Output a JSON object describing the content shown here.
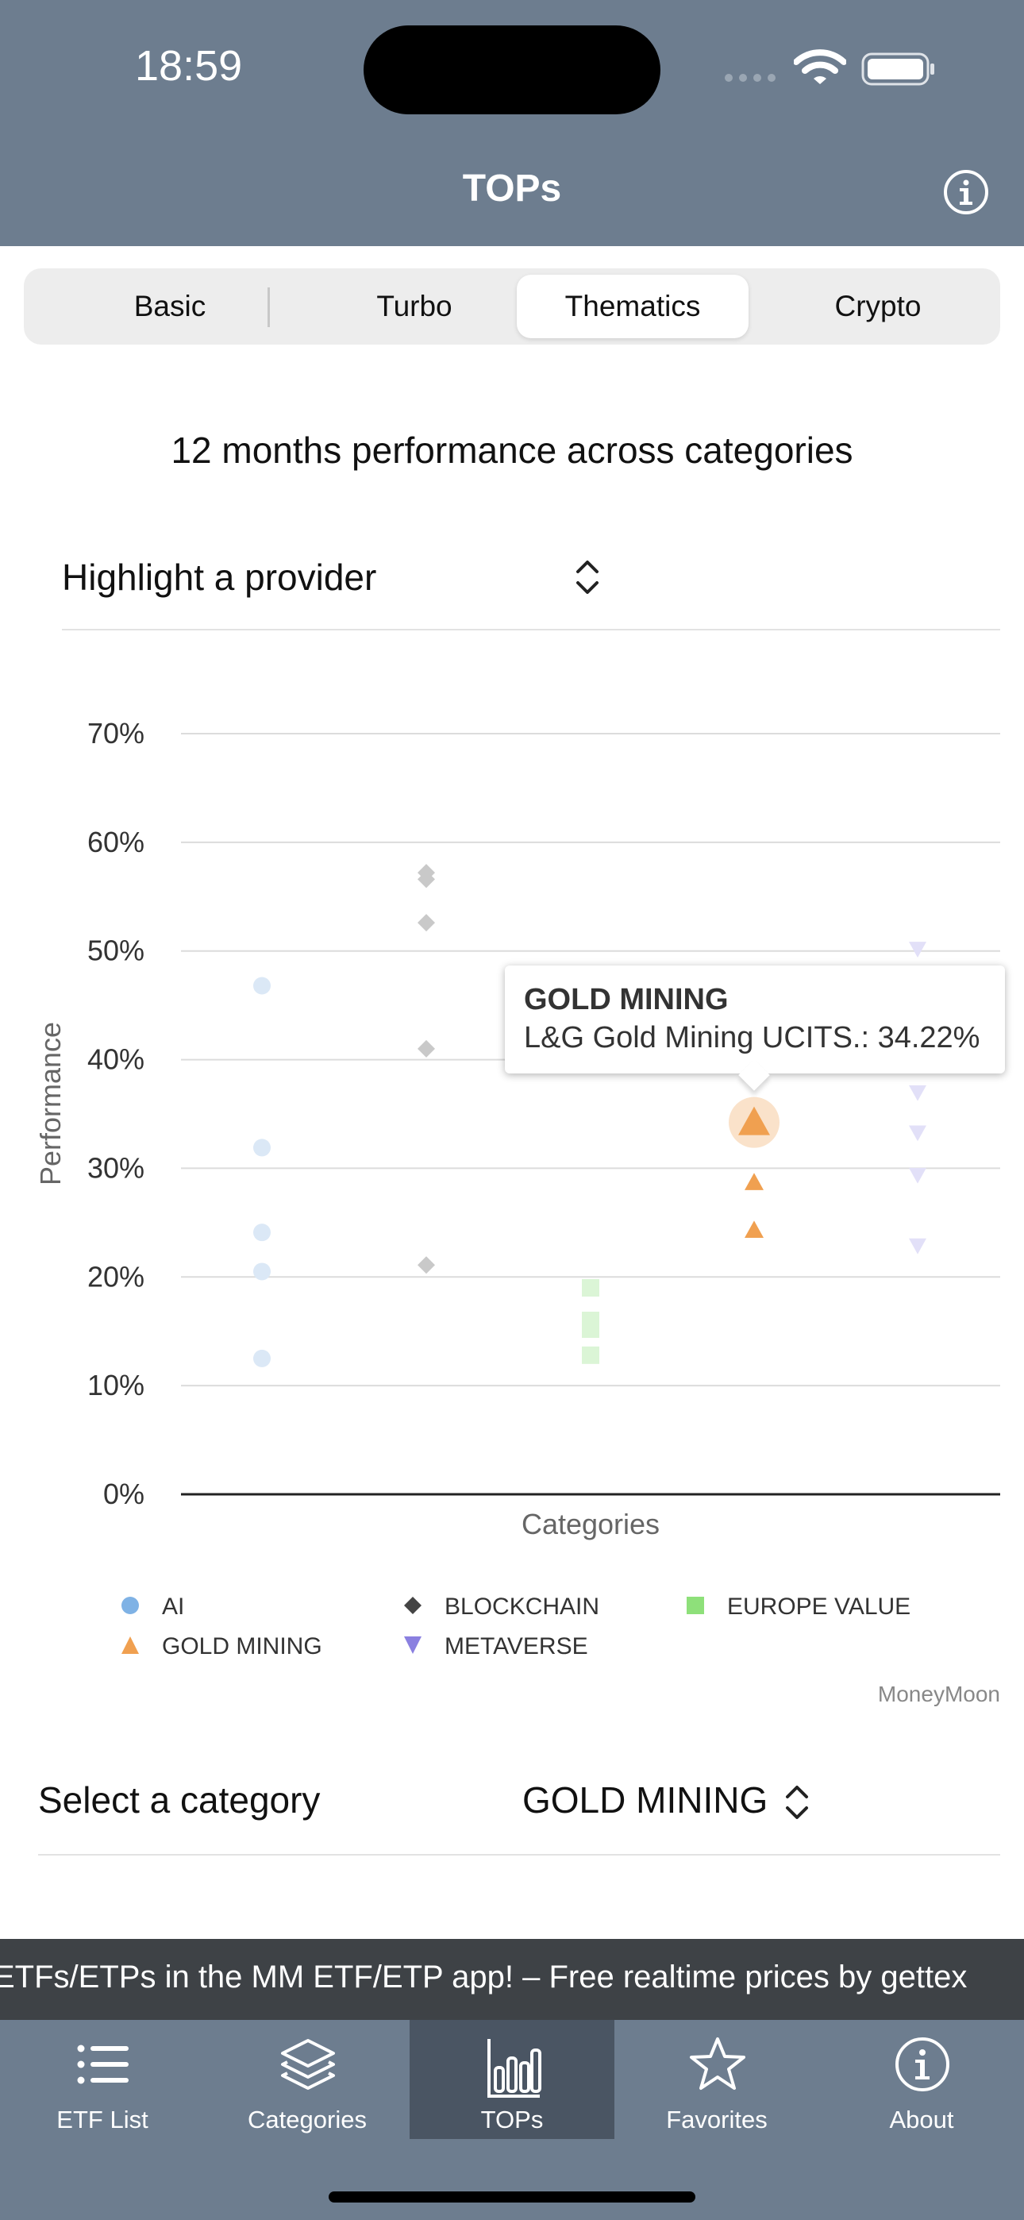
{
  "status": {
    "time": "18:59"
  },
  "nav": {
    "title": "TOPs"
  },
  "segments": [
    "Basic",
    "Turbo",
    "Thematics",
    "Crypto"
  ],
  "active_segment": "Thematics",
  "chart_heading": "12 months performance across categories",
  "highlight": {
    "label": "Highlight a provider"
  },
  "tooltip": {
    "title": "GOLD MINING",
    "text": "L&G Gold Mining UCITS.: 34.22%"
  },
  "chart_data": {
    "type": "scatter",
    "title": "12 months performance across categories",
    "xlabel": "Categories",
    "ylabel": "Performance",
    "ylim": [
      0,
      70
    ],
    "yticks": [
      "0%",
      "10%",
      "20%",
      "30%",
      "40%",
      "50%",
      "60%",
      "70%"
    ],
    "legend_position": "bottom",
    "series": [
      {
        "name": "AI",
        "marker": "circle",
        "color": "#7fb2e5",
        "values": [
          46.8,
          31.9,
          24.1,
          20.5,
          12.5
        ]
      },
      {
        "name": "BLOCKCHAIN",
        "marker": "diamond",
        "color": "#444444",
        "values": [
          57.2,
          56.6,
          52.6,
          41.0,
          21.1
        ]
      },
      {
        "name": "EUROPE VALUE",
        "marker": "square",
        "color": "#8ee07a",
        "values": [
          19.0,
          16.0,
          15.2,
          12.8
        ]
      },
      {
        "name": "GOLD MINING",
        "marker": "triangle-up",
        "color": "#f0a050",
        "values": [
          34.22,
          28.7,
          24.3
        ]
      },
      {
        "name": "METAVERSE",
        "marker": "triangle-down",
        "color": "#8a80e0",
        "values": [
          50.2,
          37.0,
          33.3,
          29.4,
          22.9
        ]
      }
    ],
    "highlighted_series": "GOLD MINING",
    "highlighted_point": {
      "series": "GOLD MINING",
      "value": 34.22
    },
    "credit": "MoneyMoon"
  },
  "category": {
    "label": "Select a category",
    "value": "GOLD MINING"
  },
  "ticker": "ETFs/ETPs in the MM ETF/ETP app! – Free realtime prices by gettex",
  "tabs": [
    {
      "label": "ETF List",
      "icon": "list-icon"
    },
    {
      "label": "Categories",
      "icon": "layers-icon"
    },
    {
      "label": "TOPs",
      "icon": "bar-chart-icon"
    },
    {
      "label": "Favorites",
      "icon": "star-icon"
    },
    {
      "label": "About",
      "icon": "info-icon"
    }
  ]
}
